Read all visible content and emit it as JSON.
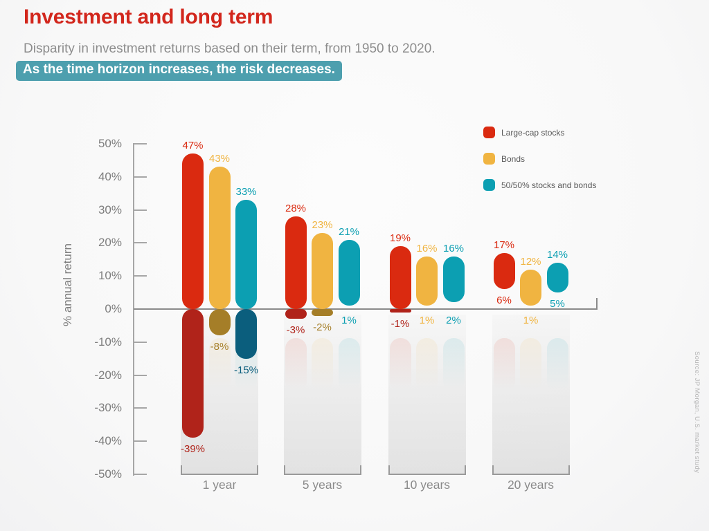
{
  "header": {
    "title": "Investment and long term",
    "subtitle": "Disparity in investment returns based on their term, from 1950 to 2020.",
    "highlight": "As the time horizon increases, the risk decreases."
  },
  "source_note": "Source: JP Morgan, U.S. market study",
  "colors": {
    "title_red": "#d2261c",
    "highlight_teal": "#4d9fae",
    "axis_gray": "#a6a6a6",
    "zero_line_gray": "#8a8a8a",
    "text_muted": "#8d8d8d"
  },
  "chart_data": {
    "type": "range-bar",
    "title": "",
    "ylabel": "% annual return",
    "ylim": [
      -50,
      50
    ],
    "y_tick_step": 10,
    "y_tick_suffix": "%",
    "grid": false,
    "legend_position": "top-right",
    "categories": [
      "1 year",
      "5 years",
      "10 years",
      "20 years"
    ],
    "series": [
      {
        "name": "Large-cap stocks",
        "color": "#da2a10",
        "negative_color": "#b0231a",
        "max_values": [
          47,
          28,
          19,
          17
        ],
        "min_values": [
          -39,
          -3,
          -1,
          6
        ]
      },
      {
        "name": "Bonds",
        "color": "#f0b441",
        "negative_color": "#a57e28",
        "max_values": [
          43,
          23,
          16,
          12
        ],
        "min_values": [
          -8,
          -2,
          1,
          1
        ]
      },
      {
        "name": "50/50% stocks and bonds",
        "color": "#0c9fb2",
        "negative_color": "#0b5e7d",
        "max_values": [
          33,
          21,
          16,
          14
        ],
        "min_values": [
          -15,
          1,
          2,
          5
        ]
      }
    ]
  }
}
